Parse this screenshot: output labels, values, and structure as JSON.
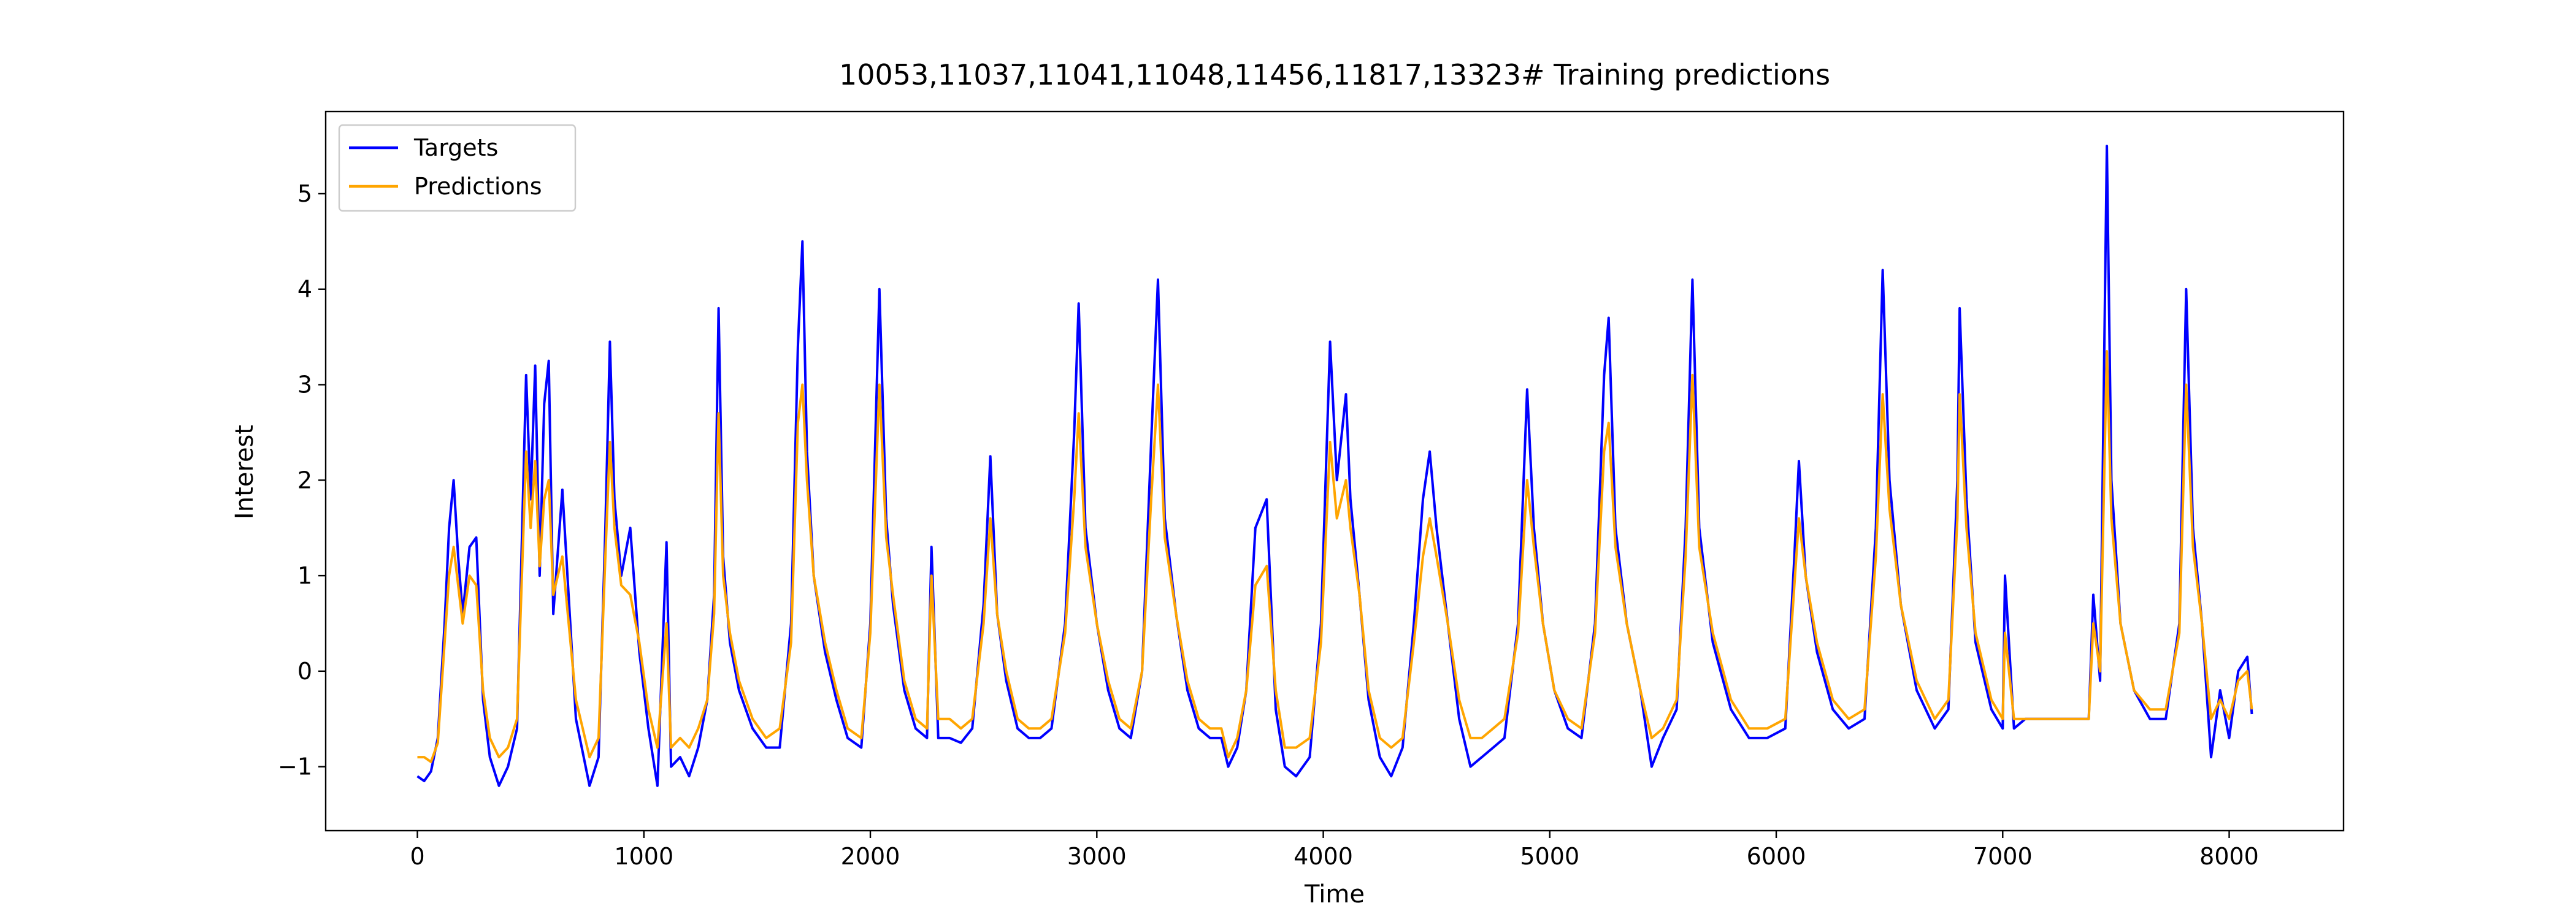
{
  "chart_data": {
    "type": "line",
    "title": "10053,11037,11041,11048,11456,11817,13323# Training predictions",
    "xlabel": "Time",
    "ylabel": "Interest",
    "x": [
      0,
      30,
      60,
      90,
      120,
      140,
      160,
      180,
      200,
      230,
      260,
      290,
      320,
      360,
      400,
      440,
      480,
      500,
      520,
      540,
      560,
      580,
      600,
      640,
      700,
      760,
      800,
      830,
      850,
      870,
      900,
      940,
      980,
      1020,
      1060,
      1100,
      1120,
      1160,
      1200,
      1240,
      1280,
      1310,
      1330,
      1350,
      1380,
      1420,
      1480,
      1540,
      1600,
      1650,
      1680,
      1700,
      1720,
      1750,
      1800,
      1850,
      1900,
      1960,
      2000,
      2040,
      2070,
      2100,
      2150,
      2200,
      2250,
      2270,
      2300,
      2350,
      2400,
      2450,
      2500,
      2530,
      2560,
      2600,
      2650,
      2700,
      2750,
      2800,
      2860,
      2900,
      2920,
      2950,
      3000,
      3050,
      3100,
      3150,
      3200,
      3240,
      3270,
      3300,
      3350,
      3400,
      3450,
      3500,
      3550,
      3580,
      3620,
      3660,
      3700,
      3750,
      3790,
      3830,
      3880,
      3940,
      3990,
      4030,
      4060,
      4100,
      4120,
      4160,
      4200,
      4250,
      4300,
      4350,
      4400,
      4440,
      4470,
      4500,
      4550,
      4600,
      4650,
      4700,
      4750,
      4800,
      4860,
      4900,
      4930,
      4970,
      5020,
      5080,
      5140,
      5200,
      5240,
      5260,
      5290,
      5340,
      5400,
      5450,
      5500,
      5560,
      5600,
      5630,
      5660,
      5720,
      5800,
      5880,
      5960,
      6040,
      6080,
      6100,
      6130,
      6180,
      6250,
      6320,
      6390,
      6440,
      6470,
      6500,
      6550,
      6620,
      6700,
      6760,
      6800,
      6810,
      6840,
      6880,
      6950,
      7000,
      7010,
      7050,
      7100,
      7200,
      7300,
      7380,
      7400,
      7430,
      7460,
      7480,
      7520,
      7580,
      7650,
      7720,
      7780,
      7810,
      7840,
      7880,
      7920,
      7960,
      8000,
      8040,
      8080,
      8100
    ],
    "series": [
      {
        "name": "Targets",
        "color": "#0000ff",
        "values": [
          -1.1,
          -1.15,
          -1.05,
          -0.7,
          0.5,
          1.5,
          2.0,
          1.2,
          0.6,
          1.3,
          1.4,
          -0.3,
          -0.9,
          -1.2,
          -1.0,
          -0.6,
          3.1,
          1.8,
          3.2,
          1.0,
          2.8,
          3.25,
          0.6,
          1.9,
          -0.5,
          -1.2,
          -0.9,
          1.5,
          3.45,
          1.8,
          1.0,
          1.5,
          0.2,
          -0.6,
          -1.2,
          1.35,
          -1.0,
          -0.9,
          -1.1,
          -0.8,
          -0.3,
          0.8,
          3.8,
          1.2,
          0.3,
          -0.2,
          -0.6,
          -0.8,
          -0.8,
          0.5,
          3.4,
          4.5,
          2.3,
          1.0,
          0.2,
          -0.3,
          -0.7,
          -0.8,
          0.5,
          4.0,
          1.6,
          0.7,
          -0.2,
          -0.6,
          -0.7,
          1.3,
          -0.7,
          -0.7,
          -0.75,
          -0.6,
          0.7,
          2.25,
          0.6,
          -0.1,
          -0.6,
          -0.7,
          -0.7,
          -0.6,
          0.5,
          2.5,
          3.85,
          1.5,
          0.5,
          -0.2,
          -0.6,
          -0.7,
          0.0,
          2.4,
          4.1,
          1.6,
          0.6,
          -0.2,
          -0.6,
          -0.7,
          -0.7,
          -1.0,
          -0.8,
          -0.2,
          1.5,
          1.8,
          -0.4,
          -1.0,
          -1.1,
          -0.9,
          0.5,
          3.45,
          2.0,
          2.9,
          1.8,
          0.8,
          -0.3,
          -0.9,
          -1.1,
          -0.8,
          0.5,
          1.8,
          2.3,
          1.5,
          0.5,
          -0.5,
          -1.0,
          -0.9,
          -0.8,
          -0.7,
          0.5,
          2.95,
          1.5,
          0.5,
          -0.2,
          -0.6,
          -0.7,
          0.5,
          3.1,
          3.7,
          1.5,
          0.5,
          -0.2,
          -1.0,
          -0.7,
          -0.4,
          1.5,
          4.1,
          1.5,
          0.3,
          -0.4,
          -0.7,
          -0.7,
          -0.6,
          1.2,
          2.2,
          1.0,
          0.2,
          -0.4,
          -0.6,
          -0.5,
          1.5,
          4.2,
          2.0,
          0.7,
          -0.2,
          -0.6,
          -0.4,
          2.0,
          3.8,
          1.8,
          0.3,
          -0.4,
          -0.6,
          1.0,
          -0.6,
          -0.5,
          -0.5,
          -0.5,
          -0.5,
          0.8,
          -0.1,
          5.5,
          2.0,
          0.5,
          -0.2,
          -0.5,
          -0.5,
          0.5,
          4.0,
          1.5,
          0.5,
          -0.9,
          -0.2,
          -0.7,
          0.0,
          0.15,
          -0.45
        ]
      },
      {
        "name": "Predictions",
        "color": "#ffa500",
        "values": [
          -0.9,
          -0.9,
          -0.95,
          -0.75,
          0.3,
          1.0,
          1.3,
          0.9,
          0.5,
          1.0,
          0.9,
          -0.2,
          -0.7,
          -0.9,
          -0.8,
          -0.5,
          2.3,
          1.5,
          2.2,
          1.1,
          1.8,
          2.0,
          0.8,
          1.2,
          -0.3,
          -0.9,
          -0.7,
          1.2,
          2.4,
          1.5,
          0.9,
          0.8,
          0.3,
          -0.4,
          -0.8,
          0.5,
          -0.8,
          -0.7,
          -0.8,
          -0.6,
          -0.3,
          0.6,
          2.7,
          1.0,
          0.4,
          -0.1,
          -0.5,
          -0.7,
          -0.6,
          0.3,
          2.6,
          3.0,
          2.0,
          1.0,
          0.3,
          -0.2,
          -0.6,
          -0.7,
          0.4,
          3.0,
          1.4,
          0.8,
          -0.1,
          -0.5,
          -0.6,
          1.0,
          -0.5,
          -0.5,
          -0.6,
          -0.5,
          0.5,
          1.6,
          0.6,
          0.0,
          -0.5,
          -0.6,
          -0.6,
          -0.5,
          0.4,
          1.8,
          2.7,
          1.3,
          0.5,
          -0.1,
          -0.5,
          -0.6,
          0.0,
          1.8,
          3.0,
          1.4,
          0.6,
          -0.1,
          -0.5,
          -0.6,
          -0.6,
          -0.9,
          -0.7,
          -0.2,
          0.9,
          1.1,
          -0.2,
          -0.8,
          -0.8,
          -0.7,
          0.3,
          2.4,
          1.6,
          2.0,
          1.5,
          0.8,
          -0.2,
          -0.7,
          -0.8,
          -0.7,
          0.3,
          1.2,
          1.6,
          1.2,
          0.5,
          -0.3,
          -0.7,
          -0.7,
          -0.6,
          -0.5,
          0.4,
          2.0,
          1.3,
          0.5,
          -0.2,
          -0.5,
          -0.6,
          0.4,
          2.3,
          2.6,
          1.3,
          0.5,
          -0.2,
          -0.7,
          -0.6,
          -0.3,
          1.2,
          3.1,
          1.3,
          0.4,
          -0.3,
          -0.6,
          -0.6,
          -0.5,
          0.9,
          1.6,
          1.0,
          0.3,
          -0.3,
          -0.5,
          -0.4,
          1.2,
          2.9,
          1.7,
          0.7,
          -0.1,
          -0.5,
          -0.3,
          1.6,
          2.9,
          1.5,
          0.4,
          -0.3,
          -0.5,
          0.4,
          -0.5,
          -0.5,
          -0.5,
          -0.5,
          -0.5,
          0.5,
          0.0,
          3.35,
          1.6,
          0.5,
          -0.2,
          -0.4,
          -0.4,
          0.4,
          3.0,
          1.3,
          0.5,
          -0.5,
          -0.3,
          -0.5,
          -0.1,
          0.0,
          -0.4
        ]
      }
    ],
    "xlim": [
      -405,
      8505
    ],
    "ylim": [
      -1.67,
      5.86
    ],
    "xticks": [
      0,
      1000,
      2000,
      3000,
      4000,
      5000,
      6000,
      7000,
      8000
    ],
    "yticks": [
      {
        "value": -1,
        "label": "−1"
      },
      0,
      1,
      2,
      3,
      4,
      5
    ],
    "legend": "upper left"
  }
}
